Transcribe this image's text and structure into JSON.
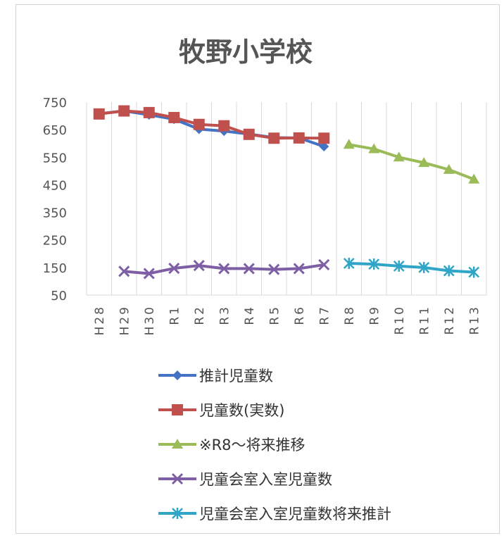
{
  "chart_data": {
    "type": "line",
    "title": "牧野小学校",
    "categories": [
      "H28",
      "H29",
      "H30",
      "R1",
      "R2",
      "R3",
      "R4",
      "R5",
      "R6",
      "R7",
      "R8",
      "R9",
      "R10",
      "R11",
      "R12",
      "R13"
    ],
    "yticks": [
      "750",
      "650",
      "550",
      "450",
      "350",
      "250",
      "150",
      "50"
    ],
    "ylim": [
      50,
      750
    ],
    "grid": "vertical",
    "legend": "bottom",
    "series": [
      {
        "name": "推計児童数",
        "color": "#4472c4",
        "marker": "diamond",
        "values": [
          708,
          718,
          704,
          688,
          652,
          645,
          634,
          621,
          620,
          589,
          null,
          null,
          null,
          null,
          null,
          null
        ]
      },
      {
        "name": "児童数(実数)",
        "color": "#c0504d",
        "marker": "square",
        "values": [
          707,
          718,
          712,
          694,
          669,
          664,
          633,
          619,
          620,
          619,
          null,
          null,
          null,
          null,
          null,
          null
        ]
      },
      {
        "name": "※R8～将来推移",
        "color": "#9bbb59",
        "marker": "triangle",
        "values": [
          null,
          null,
          null,
          null,
          null,
          null,
          null,
          null,
          null,
          null,
          596,
          580,
          550,
          530,
          505,
          470
        ]
      },
      {
        "name": "児童会室入室児童数",
        "color": "#7e5fa6",
        "marker": "x",
        "values": [
          null,
          136,
          128,
          147,
          157,
          146,
          146,
          143,
          146,
          160,
          null,
          null,
          null,
          null,
          null,
          null
        ]
      },
      {
        "name": "児童会室入室児童数将来推計",
        "color": "#31a5c8",
        "marker": "star",
        "values": [
          null,
          null,
          null,
          null,
          null,
          null,
          null,
          null,
          null,
          null,
          165,
          162,
          155,
          150,
          138,
          133
        ]
      }
    ]
  }
}
